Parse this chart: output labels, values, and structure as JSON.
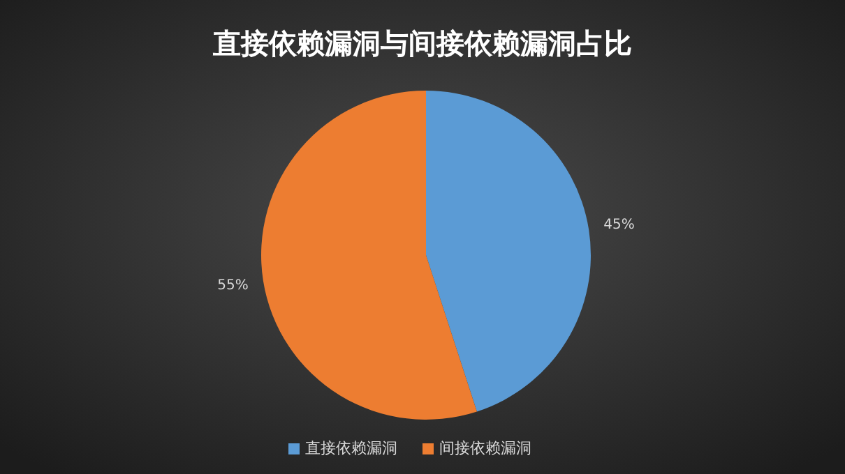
{
  "chart_data": {
    "type": "pie",
    "title": "直接依赖漏洞与间接依赖漏洞占比",
    "categories": [
      "直接依赖漏洞",
      "间接依赖漏洞"
    ],
    "values": [
      45,
      55
    ],
    "colors": [
      "#5b9bd5",
      "#ed7d31"
    ],
    "value_labels": [
      "45%",
      "55%"
    ],
    "legend": "bottom"
  }
}
